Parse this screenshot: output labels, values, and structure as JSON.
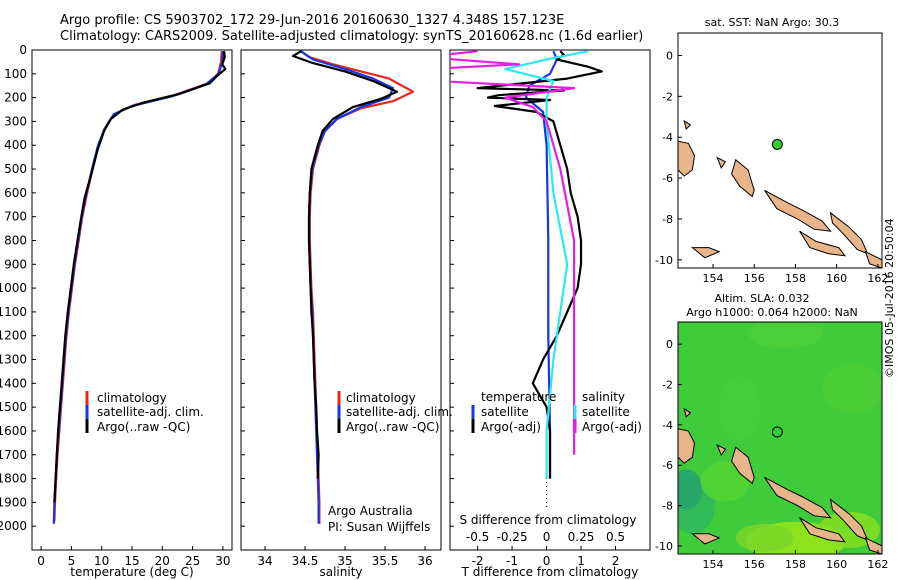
{
  "header": {
    "title_line1": "Argo profile: CS 5903702_172 29-Jun-2016 20160630_1327 4.348S 157.123E",
    "title_line2": "Climatology: CARS2009. Satellite-adjusted climatology: synTS_20160628.nc (1.6d earlier)"
  },
  "side_label": "©IMOS 05-Jul-2016 20:50:04",
  "colors": {
    "climatology": "#e8261e",
    "satellite": "#1636e6",
    "argo": "#000000",
    "sat_diff": "#2ee8f0",
    "argo_diff": "#e61ee6",
    "land": "#e8b48a",
    "sea_green": "#33cc33"
  },
  "chart_data": [
    {
      "type": "line",
      "id": "temperature",
      "xlabel": "temperature (deg C)",
      "ylabel": "",
      "xlim": [
        -1.5,
        31.5
      ],
      "ylim": [
        2100,
        0
      ],
      "xticks": [
        0,
        5,
        10,
        15,
        20,
        25,
        30
      ],
      "yticks": [
        0,
        100,
        200,
        300,
        400,
        500,
        600,
        700,
        800,
        900,
        1000,
        1100,
        1200,
        1300,
        1400,
        1500,
        1600,
        1700,
        1800,
        1900,
        2000
      ],
      "legend": [
        "climatology",
        "satellite-adj. clim.",
        "Argo(..raw -QC)"
      ],
      "series": [
        {
          "name": "climatology",
          "color": "climatology",
          "points": [
            [
              29.8,
              5
            ],
            [
              29.7,
              50
            ],
            [
              29.2,
              100
            ],
            [
              27.5,
              140
            ],
            [
              22.0,
              190
            ],
            [
              15.5,
              230
            ],
            [
              12.0,
              270
            ],
            [
              10.5,
              330
            ],
            [
              9.5,
              400
            ],
            [
              8.5,
              500
            ],
            [
              7.6,
              600
            ],
            [
              6.8,
              700
            ],
            [
              6.2,
              800
            ],
            [
              5.6,
              900
            ],
            [
              5.1,
              1000
            ],
            [
              4.6,
              1100
            ],
            [
              4.2,
              1200
            ],
            [
              3.9,
              1300
            ],
            [
              3.6,
              1400
            ],
            [
              3.3,
              1500
            ],
            [
              3.0,
              1600
            ],
            [
              2.7,
              1700
            ],
            [
              2.5,
              1800
            ],
            [
              2.3,
              1900
            ],
            [
              2.2,
              1980
            ]
          ]
        },
        {
          "name": "satellite-adj. clim.",
          "color": "satellite",
          "points": [
            [
              30.0,
              5
            ],
            [
              29.9,
              50
            ],
            [
              29.3,
              100
            ],
            [
              27.2,
              145
            ],
            [
              21.5,
              195
            ],
            [
              15.0,
              235
            ],
            [
              12.0,
              270
            ],
            [
              10.5,
              330
            ],
            [
              9.4,
              400
            ],
            [
              8.4,
              500
            ],
            [
              7.5,
              600
            ],
            [
              6.7,
              700
            ],
            [
              6.1,
              800
            ],
            [
              5.5,
              900
            ],
            [
              5.0,
              1000
            ],
            [
              4.5,
              1100
            ],
            [
              4.1,
              1200
            ],
            [
              3.8,
              1300
            ],
            [
              3.5,
              1400
            ],
            [
              3.2,
              1500
            ],
            [
              2.9,
              1600
            ],
            [
              2.6,
              1700
            ],
            [
              2.4,
              1800
            ],
            [
              2.2,
              1900
            ],
            [
              2.1,
              1990
            ]
          ]
        },
        {
          "name": "Argo(..raw -QC)",
          "color": "argo",
          "points": [
            [
              30.2,
              5
            ],
            [
              30.3,
              30
            ],
            [
              29.9,
              60
            ],
            [
              30.4,
              80
            ],
            [
              29.0,
              110
            ],
            [
              27.8,
              140
            ],
            [
              22.8,
              185
            ],
            [
              17.0,
              220
            ],
            [
              13.5,
              250
            ],
            [
              11.5,
              290
            ],
            [
              10.4,
              340
            ],
            [
              9.3,
              420
            ],
            [
              8.3,
              520
            ],
            [
              7.2,
              620
            ],
            [
              6.5,
              720
            ],
            [
              6.0,
              800
            ],
            [
              5.4,
              900
            ],
            [
              4.9,
              1000
            ],
            [
              4.4,
              1100
            ],
            [
              4.0,
              1200
            ],
            [
              3.7,
              1300
            ],
            [
              3.4,
              1400
            ],
            [
              3.1,
              1500
            ],
            [
              2.8,
              1600
            ],
            [
              2.6,
              1700
            ],
            [
              2.4,
              1800
            ],
            [
              2.2,
              1900
            ]
          ]
        }
      ]
    },
    {
      "type": "line",
      "id": "salinity",
      "xlabel": "salinity",
      "ylabel": "",
      "xlim": [
        33.7,
        36.2
      ],
      "ylim": [
        2100,
        0
      ],
      "xticks": [
        34,
        34.5,
        35,
        35.5,
        36
      ],
      "xticklabels": [
        "34",
        "34.5",
        "35",
        "35.5",
        "36"
      ],
      "legend": [
        "climatology",
        "satellite-adj. clim.",
        "Argo(..raw -QC)"
      ],
      "annotations": [
        "Argo Australia",
        "PI: Susan Wijffels"
      ],
      "series": [
        {
          "name": "climatology",
          "color": "climatology",
          "points": [
            [
              34.45,
              5
            ],
            [
              34.55,
              30
            ],
            [
              34.85,
              60
            ],
            [
              35.2,
              90
            ],
            [
              35.55,
              120
            ],
            [
              35.85,
              175
            ],
            [
              35.6,
              215
            ],
            [
              35.2,
              245
            ],
            [
              34.9,
              290
            ],
            [
              34.75,
              340
            ],
            [
              34.68,
              400
            ],
            [
              34.6,
              500
            ],
            [
              34.57,
              600
            ],
            [
              34.56,
              700
            ],
            [
              34.56,
              800
            ],
            [
              34.57,
              900
            ],
            [
              34.58,
              1000
            ],
            [
              34.6,
              1100
            ],
            [
              34.61,
              1200
            ],
            [
              34.62,
              1300
            ],
            [
              34.63,
              1400
            ],
            [
              34.64,
              1500
            ],
            [
              34.65,
              1600
            ],
            [
              34.66,
              1700
            ],
            [
              34.67,
              1800
            ],
            [
              34.68,
              1900
            ],
            [
              34.68,
              1990
            ]
          ]
        },
        {
          "name": "satellite-adj. clim.",
          "color": "satellite",
          "points": [
            [
              34.45,
              5
            ],
            [
              34.6,
              40
            ],
            [
              35.0,
              80
            ],
            [
              35.35,
              120
            ],
            [
              35.6,
              160
            ],
            [
              35.55,
              200
            ],
            [
              35.2,
              240
            ],
            [
              34.9,
              290
            ],
            [
              34.75,
              340
            ],
            [
              34.67,
              400
            ],
            [
              34.59,
              500
            ],
            [
              34.56,
              600
            ],
            [
              34.55,
              700
            ],
            [
              34.55,
              800
            ],
            [
              34.56,
              900
            ],
            [
              34.57,
              1000
            ],
            [
              34.59,
              1100
            ],
            [
              34.6,
              1200
            ],
            [
              34.61,
              1300
            ],
            [
              34.62,
              1400
            ],
            [
              34.63,
              1500
            ],
            [
              34.64,
              1600
            ],
            [
              34.65,
              1700
            ],
            [
              34.66,
              1800
            ],
            [
              34.67,
              1900
            ],
            [
              34.67,
              1990
            ]
          ]
        },
        {
          "name": "Argo(..raw -QC)",
          "color": "argo",
          "points": [
            [
              34.45,
              5
            ],
            [
              34.35,
              25
            ],
            [
              34.6,
              55
            ],
            [
              35.0,
              90
            ],
            [
              35.35,
              130
            ],
            [
              35.65,
              175
            ],
            [
              35.45,
              205
            ],
            [
              35.1,
              240
            ],
            [
              34.85,
              290
            ],
            [
              34.72,
              340
            ],
            [
              34.66,
              400
            ],
            [
              34.58,
              500
            ],
            [
              34.56,
              600
            ],
            [
              34.55,
              700
            ],
            [
              34.55,
              800
            ],
            [
              34.56,
              900
            ],
            [
              34.57,
              1000
            ],
            [
              34.58,
              1100
            ],
            [
              34.6,
              1200
            ],
            [
              34.61,
              1300
            ],
            [
              34.62,
              1400
            ],
            [
              34.64,
              1500
            ],
            [
              34.65,
              1600
            ],
            [
              34.67,
              1700
            ],
            [
              34.66,
              1800
            ]
          ]
        }
      ]
    },
    {
      "type": "line",
      "id": "differences",
      "xlabel": "T difference from climatology",
      "xlabel_top": "S difference from climatology",
      "xlim": [
        -2.8,
        3.0
      ],
      "ylim": [
        2100,
        0
      ],
      "xticks": [
        -2,
        -1,
        0,
        1,
        2
      ],
      "s_ticks": [
        -0.5,
        -0.25,
        0,
        0.25,
        0.5
      ],
      "s_ticklabels": [
        "-0.5",
        "-0.25",
        "0",
        "0.25",
        "0.5"
      ],
      "legend_temperature_title": "temperature",
      "legend_salinity_title": "salinity",
      "legend_entries": [
        "satellite",
        "Argo(-adj)",
        "satellite",
        "Argo(-adj)"
      ],
      "series": [
        {
          "name": "T satellite",
          "color": "satellite",
          "points": [
            [
              0.2,
              5
            ],
            [
              0.3,
              40
            ],
            [
              0.1,
              100
            ],
            [
              -0.5,
              150
            ],
            [
              -0.6,
              200
            ],
            [
              -0.1,
              260
            ],
            [
              0.0,
              400
            ],
            [
              0.05,
              800
            ],
            [
              0.05,
              1200
            ],
            [
              0.1,
              1600
            ],
            [
              0.1,
              1800
            ]
          ]
        },
        {
          "name": "T Argo(-adj)",
          "color": "argo",
          "points": [
            [
              0.4,
              5
            ],
            [
              0.5,
              20
            ],
            [
              0.3,
              40
            ],
            [
              1.2,
              70
            ],
            [
              1.6,
              90
            ],
            [
              0.6,
              120
            ],
            [
              -2.0,
              160
            ],
            [
              0.5,
              170
            ],
            [
              -1.4,
              190
            ],
            [
              -1.7,
              200
            ],
            [
              0.1,
              210
            ],
            [
              -1.5,
              235
            ],
            [
              -0.3,
              260
            ],
            [
              0.2,
              300
            ],
            [
              0.4,
              400
            ],
            [
              0.6,
              500
            ],
            [
              0.7,
              600
            ],
            [
              0.9,
              700
            ],
            [
              1.0,
              800
            ],
            [
              1.0,
              900
            ],
            [
              0.9,
              1000
            ],
            [
              0.6,
              1100
            ],
            [
              0.3,
              1200
            ],
            [
              -0.1,
              1300
            ],
            [
              -0.4,
              1400
            ],
            [
              0.0,
              1500
            ],
            [
              0.1,
              1600
            ],
            [
              0.1,
              1700
            ],
            [
              0.1,
              1800
            ]
          ]
        },
        {
          "name": "S satellite",
          "color": "sat_diff",
          "points": [
            [
              0.3,
              5
            ],
            [
              0.0,
              40
            ],
            [
              -0.3,
              80
            ],
            [
              0.05,
              130
            ],
            [
              0.0,
              200
            ],
            [
              0.0,
              300
            ],
            [
              0.05,
              600
            ],
            [
              0.15,
              900
            ],
            [
              0.05,
              1300
            ],
            [
              0.0,
              1600
            ],
            [
              0.0,
              1800
            ]
          ]
        },
        {
          "name": "S Argo(-adj)",
          "color": "argo_diff",
          "points": [
            [
              -0.5,
              5
            ],
            [
              -0.9,
              30
            ],
            [
              -0.2,
              60
            ],
            [
              -1.2,
              90
            ],
            [
              -0.8,
              130
            ],
            [
              0.2,
              160
            ],
            [
              -0.3,
              200
            ],
            [
              -0.1,
              240
            ],
            [
              0.0,
              300
            ],
            [
              0.1,
              500
            ],
            [
              0.2,
              800
            ],
            [
              0.2,
              1200
            ],
            [
              0.2,
              1700
            ]
          ]
        }
      ]
    },
    {
      "type": "map",
      "id": "sst_map",
      "title": "sat. SST: NaN Argo: 30.3",
      "xlim": [
        152.3,
        162.2
      ],
      "ylim": [
        -10.4,
        1.1
      ],
      "xticks": [
        154,
        156,
        158,
        160,
        162
      ],
      "yticks": [
        0,
        -2,
        -4,
        -6,
        -8,
        -10
      ],
      "float_position": [
        157.12,
        -4.35
      ]
    },
    {
      "type": "map",
      "id": "sla_map",
      "title_line1": "Altim. SLA: 0.032",
      "title_line2": "Argo h1000: 0.064 h2000: NaN",
      "xlim": [
        152.3,
        162.2
      ],
      "ylim": [
        -10.4,
        1.1
      ],
      "xticks": [
        154,
        156,
        158,
        160,
        162
      ],
      "yticks": [
        0,
        -2,
        -4,
        -6,
        -8,
        -10
      ],
      "float_position": [
        157.12,
        -4.35
      ]
    }
  ]
}
